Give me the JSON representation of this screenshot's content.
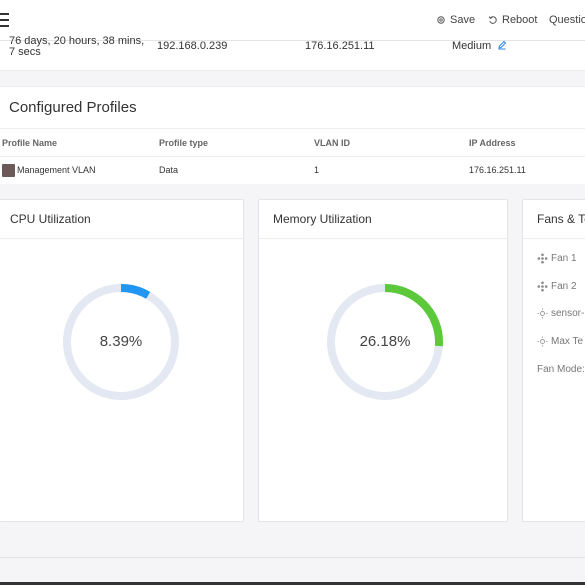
{
  "toolbar": {
    "save_label": "Save",
    "reboot_label": "Reboot",
    "question_label": "Questio"
  },
  "system": {
    "uptime": "76 days, 20 hours, 38 mins, 7 secs",
    "ip_address": "192.168.0.239",
    "ip_address_2": "176.16.251.11",
    "level": "Medium"
  },
  "profiles": {
    "title": "Configured Profiles",
    "columns": [
      "Profile Name",
      "Profile type",
      "VLAN ID",
      "IP Address"
    ],
    "rows": [
      {
        "name": "Management VLAN",
        "type": "Data",
        "vlan": "1",
        "ip": "176.16.251.11"
      }
    ]
  },
  "cpu": {
    "title": "CPU Utilization",
    "value_label": "8.39%",
    "value": 8.39,
    "color": "#2196f3"
  },
  "memory": {
    "title": "Memory Utilization",
    "value_label": "26.18%",
    "value": 26.18,
    "color": "#5cc93b"
  },
  "fans": {
    "title": "Fans & Te",
    "items": [
      "Fan 1",
      "Fan 2",
      "sensor-",
      "Max Te"
    ],
    "mode_label": "Fan Mode:"
  },
  "colors": {
    "ring_track": "#e3e8f2",
    "link": "#2e86de"
  }
}
